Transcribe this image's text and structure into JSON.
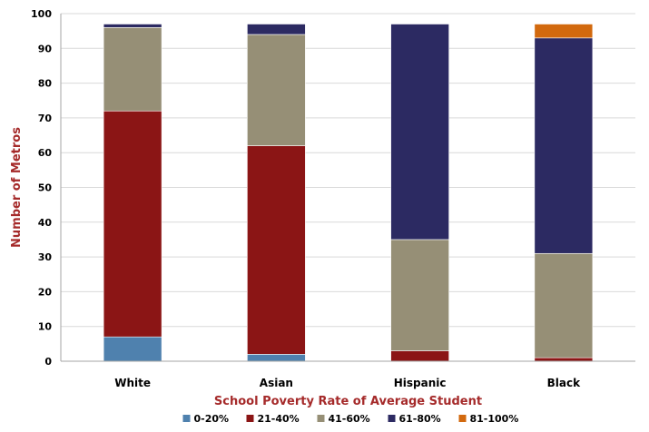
{
  "chart_data": {
    "type": "bar",
    "stacked": true,
    "categories": [
      "White",
      "Asian",
      "Hispanic",
      "Black"
    ],
    "series": [
      {
        "name": "0-20%",
        "color": "#4F81AE",
        "values": [
          7,
          2,
          0,
          0
        ]
      },
      {
        "name": "21-40%",
        "color": "#8B1515",
        "values": [
          65,
          60,
          3,
          1
        ]
      },
      {
        "name": "41-60%",
        "color": "#968F76",
        "values": [
          24,
          32,
          32,
          30
        ]
      },
      {
        "name": "61-80%",
        "color": "#2C2A62",
        "values": [
          1,
          3,
          62,
          62
        ]
      },
      {
        "name": "81-100%",
        "color": "#D2690E",
        "values": [
          0,
          0,
          0,
          4
        ]
      }
    ],
    "title": "",
    "xlabel": "School Poverty Rate of Average Student",
    "ylabel": "Number of Metros",
    "ylim": [
      0,
      100
    ],
    "yticks": [
      0,
      10,
      20,
      30,
      40,
      50,
      60,
      70,
      80,
      90,
      100
    ],
    "grid": true,
    "legend_position": "bottom",
    "axis_title_color": "#A52A2A",
    "grid_color": "#D9D9D9"
  }
}
